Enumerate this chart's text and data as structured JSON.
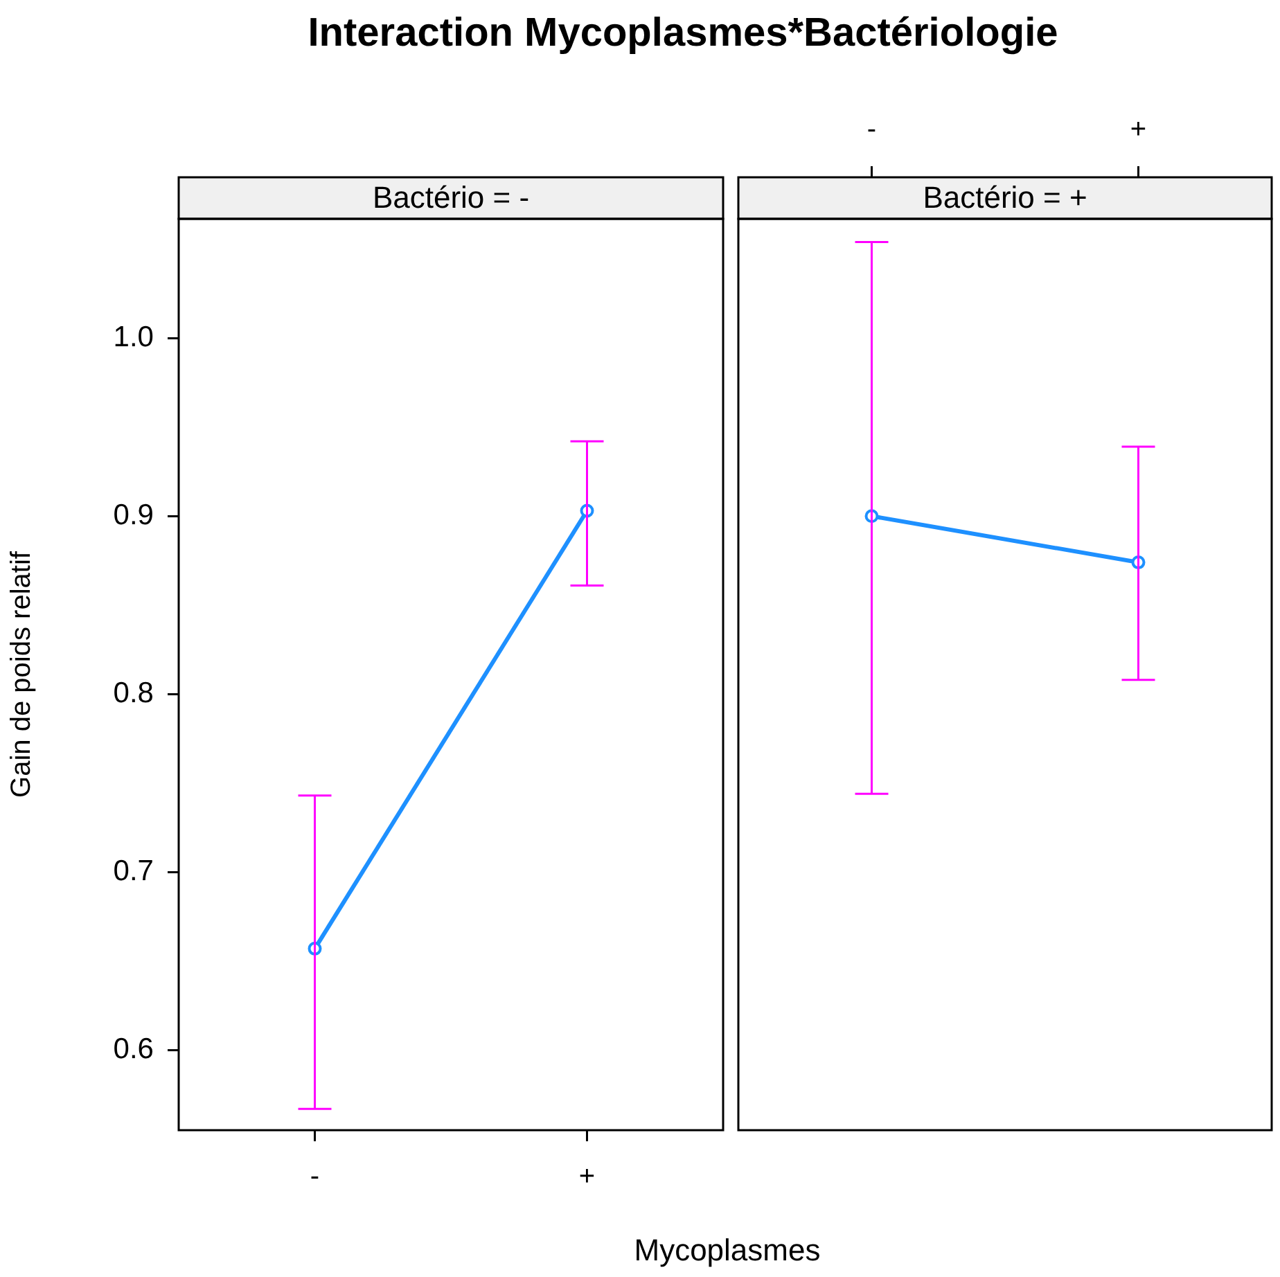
{
  "chart_data": [
    {
      "type": "line",
      "title": "Interaction Mycoplasmes*Bactériologie",
      "subtitle": "Bactério = -",
      "xlabel": "Mycoplasmes",
      "ylabel": "Gain de poids relatif",
      "categories": [
        "-",
        "+"
      ],
      "series": [
        {
          "color": "#1e90ff",
          "values": [
            0.657,
            0.903
          ],
          "errors": [
            [
              0.567,
              0.743
            ],
            [
              0.861,
              0.942
            ]
          ]
        }
      ],
      "ylim": [
        0.555,
        1.067
      ],
      "yticks": [
        0.6,
        0.7,
        0.8,
        0.9,
        {
          "value": 1.0,
          "label": "1.0"
        }
      ],
      "grid": false,
      "legend": false,
      "marker": "circle"
    },
    {
      "type": "line",
      "subtitle": "Bactério = +",
      "categories": [
        "-",
        "+"
      ],
      "series": [
        {
          "color": "#1e90ff",
          "values": [
            0.9,
            0.874
          ],
          "errors": [
            [
              0.744,
              1.054
            ],
            [
              0.808,
              0.939
            ]
          ]
        }
      ],
      "ylim": [
        0.555,
        1.067
      ],
      "grid": false,
      "legend": false,
      "marker": "circle",
      "tick_labels": "x"
    }
  ]
}
